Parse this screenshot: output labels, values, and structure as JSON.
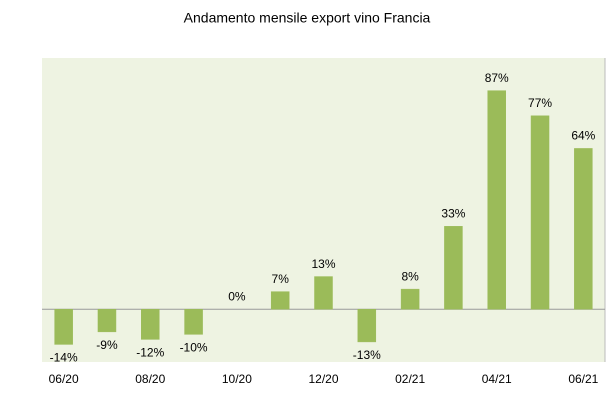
{
  "chart_data": {
    "type": "bar",
    "title": "Andamento mensile export vino Francia",
    "categories": [
      "06/20",
      null,
      "08/20",
      null,
      "10/20",
      null,
      "12/20",
      null,
      "02/21",
      null,
      "04/21",
      null,
      "06/21"
    ],
    "values": [
      -14,
      -9,
      -12,
      -10,
      0,
      7,
      13,
      -13,
      8,
      33,
      87,
      77,
      64
    ],
    "value_labels": [
      "-14%",
      "-9%",
      "-12%",
      "-10%",
      "0%",
      "7%",
      "13%",
      "-13%",
      "8%",
      "33%",
      "87%",
      "77%",
      "64%"
    ],
    "color": "#9bbb59",
    "ylim": [
      -21,
      100
    ]
  }
}
